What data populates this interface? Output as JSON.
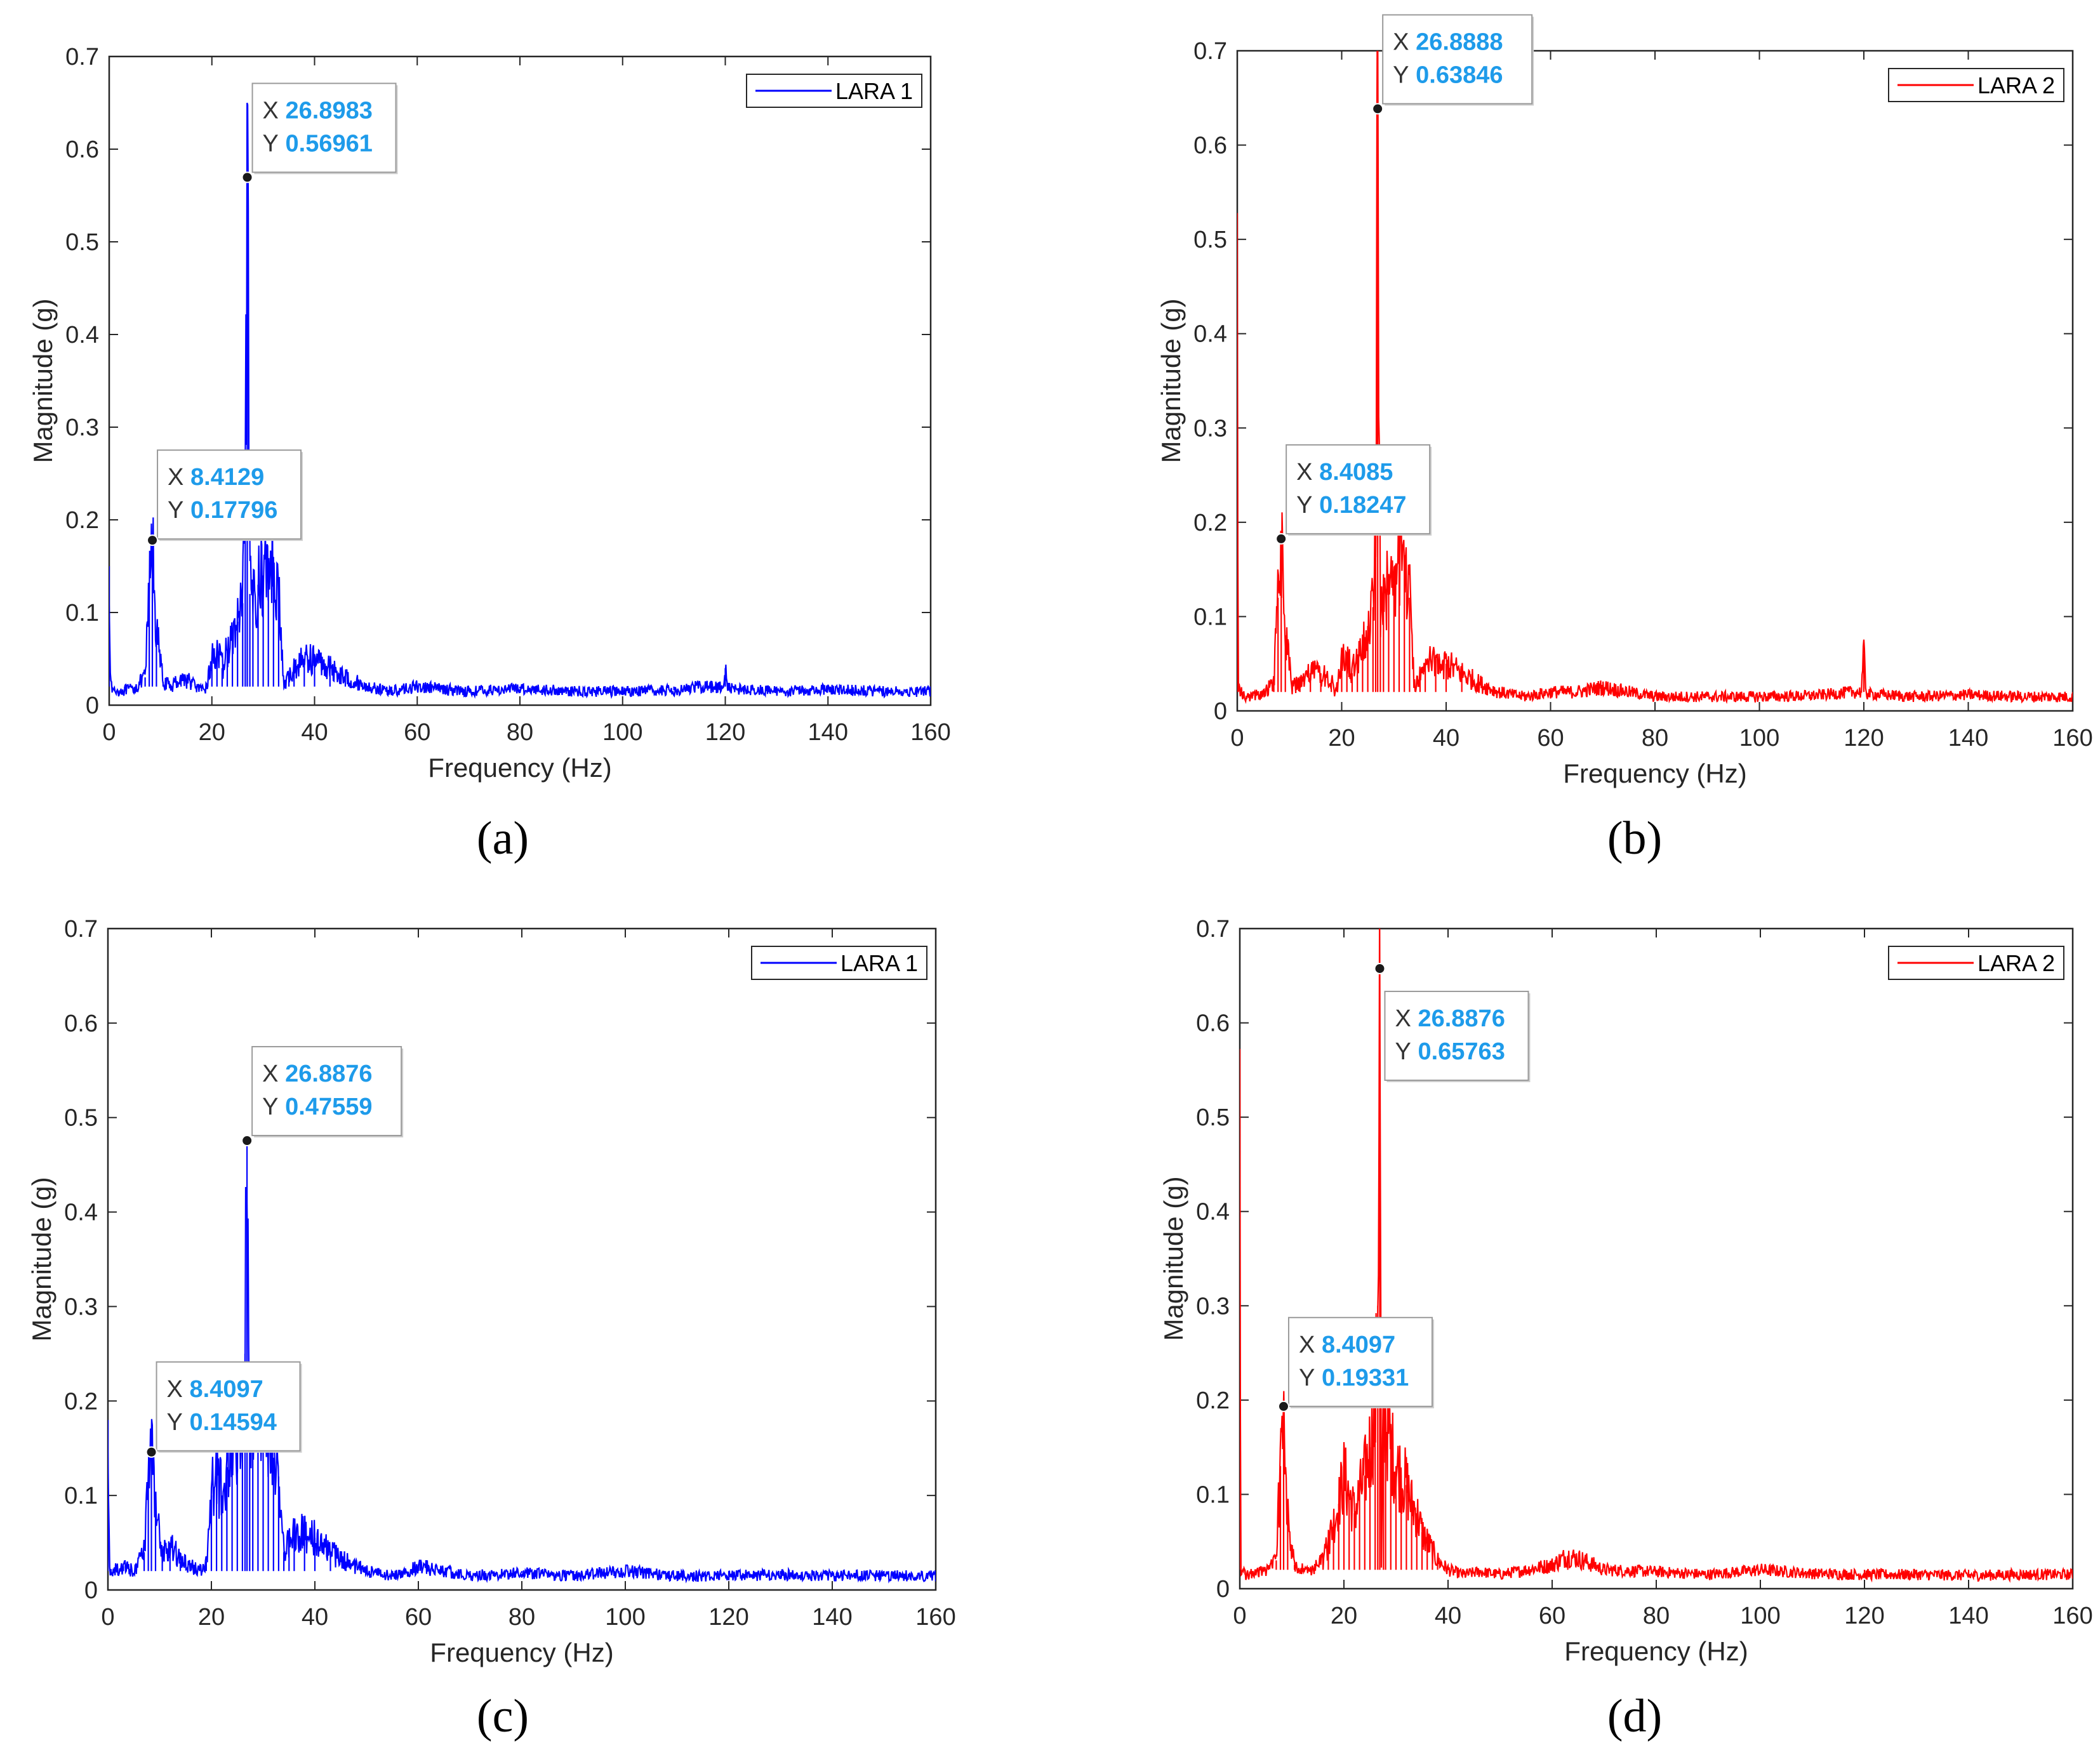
{
  "figure": {
    "panel_labels": [
      "(a)",
      "(b)",
      "(c)",
      "(d)"
    ]
  },
  "colors": {
    "blue": "#0000ff",
    "red": "#ff0000",
    "tip_value": "#1e9bea",
    "axis": "#262626"
  },
  "chart_data": [
    {
      "type": "line",
      "panel": "(a)",
      "title": "",
      "xlabel": "Frequency (Hz)",
      "ylabel": "Magnitude (g)",
      "xlim": [
        0,
        160
      ],
      "ylim": [
        0,
        0.7
      ],
      "xticks": [
        0,
        20,
        40,
        60,
        80,
        100,
        120,
        140,
        160
      ],
      "yticks": [
        0,
        0.1,
        0.2,
        0.3,
        0.4,
        0.5,
        0.6,
        0.7
      ],
      "xtick_labels": [
        "0",
        "20",
        "40",
        "60",
        "80",
        "100",
        "120",
        "140",
        "160"
      ],
      "ytick_labels": [
        "0",
        "0.1",
        "0.2",
        "0.3",
        "0.4",
        "0.5",
        "0.6",
        "0.7"
      ],
      "legend": {
        "label": "LARA 1",
        "position": "top-right"
      },
      "color": "#0000ff",
      "series": [
        {
          "name": "LARA 1",
          "x": [
            0,
            0.3,
            1,
            3,
            5,
            7,
            7.8,
            8.4129,
            9.2,
            10.5,
            12,
            14,
            16,
            18,
            19,
            20,
            21,
            22,
            23,
            24,
            25,
            26,
            26.5,
            26.8983,
            27.4,
            28,
            29,
            30,
            31,
            32,
            33,
            34,
            35,
            36,
            38,
            40,
            43,
            46,
            50,
            55,
            60,
            70,
            80,
            90,
            100,
            110,
            115,
            119.5,
            120,
            120.5,
            130,
            140,
            150,
            160
          ],
          "y": [
            0.15,
            0.02,
            0.015,
            0.016,
            0.018,
            0.03,
            0.12,
            0.17796,
            0.08,
            0.025,
            0.02,
            0.03,
            0.025,
            0.015,
            0.02,
            0.05,
            0.06,
            0.04,
            0.06,
            0.07,
            0.09,
            0.11,
            0.2,
            0.56961,
            0.12,
            0.12,
            0.13,
            0.14,
            0.155,
            0.16,
            0.12,
            0.02,
            0.03,
            0.04,
            0.05,
            0.05,
            0.04,
            0.03,
            0.02,
            0.015,
            0.02,
            0.015,
            0.018,
            0.015,
            0.015,
            0.016,
            0.02,
            0.02,
            0.04,
            0.018,
            0.015,
            0.017,
            0.015,
            0.015
          ]
        }
      ],
      "datatips": [
        {
          "x_label": "X",
          "x_value": "26.8983",
          "y_label": "Y",
          "y_value": "0.56961",
          "x": 26.8983,
          "y": 0.56961
        },
        {
          "x_label": "X",
          "x_value": "8.4129",
          "y_label": "Y",
          "y_value": "0.17796",
          "x": 8.4129,
          "y": 0.17796
        }
      ]
    },
    {
      "type": "line",
      "panel": "(b)",
      "title": "",
      "xlabel": "Frequency (Hz)",
      "ylabel": "Magnitude (g)",
      "xlim": [
        0,
        160
      ],
      "ylim": [
        0,
        0.7
      ],
      "xticks": [
        0,
        20,
        40,
        60,
        80,
        100,
        120,
        140,
        160
      ],
      "yticks": [
        0,
        0.1,
        0.2,
        0.3,
        0.4,
        0.5,
        0.6,
        0.7
      ],
      "xtick_labels": [
        "0",
        "20",
        "40",
        "60",
        "80",
        "100",
        "120",
        "140",
        "160"
      ],
      "ytick_labels": [
        "0",
        "0.1",
        "0.2",
        "0.3",
        "0.4",
        "0.5",
        "0.6",
        "0.7"
      ],
      "legend": {
        "label": "LARA 2",
        "position": "top-right"
      },
      "color": "#ff0000",
      "series": [
        {
          "name": "LARA 2",
          "x": [
            0,
            0.2,
            1,
            3,
            5,
            7,
            7.8,
            8.4085,
            9.2,
            10.5,
            12,
            14,
            16,
            18,
            19,
            20,
            21,
            22,
            23,
            24,
            25,
            26,
            26.5,
            26.8888,
            27.4,
            28,
            29,
            30,
            31,
            32,
            33,
            34,
            35,
            36,
            38,
            40,
            43,
            46,
            50,
            55,
            60,
            65,
            70,
            75,
            80,
            90,
            100,
            110,
            118,
            119.5,
            120,
            120.5,
            130,
            140,
            150,
            160
          ],
          "y": [
            0.47,
            0.03,
            0.015,
            0.016,
            0.018,
            0.03,
            0.12,
            0.18247,
            0.08,
            0.025,
            0.03,
            0.04,
            0.04,
            0.03,
            0.02,
            0.05,
            0.06,
            0.04,
            0.06,
            0.07,
            0.09,
            0.11,
            0.2,
            0.63846,
            0.12,
            0.12,
            0.13,
            0.14,
            0.155,
            0.165,
            0.12,
            0.02,
            0.04,
            0.05,
            0.055,
            0.05,
            0.04,
            0.03,
            0.02,
            0.015,
            0.02,
            0.02,
            0.025,
            0.02,
            0.015,
            0.015,
            0.015,
            0.016,
            0.02,
            0.02,
            0.06,
            0.018,
            0.015,
            0.017,
            0.015,
            0.015
          ]
        }
      ],
      "datatips": [
        {
          "x_label": "X",
          "x_value": "26.8888",
          "y_label": "Y",
          "y_value": "0.63846",
          "x": 26.8888,
          "y": 0.63846
        },
        {
          "x_label": "X",
          "x_value": "8.4085",
          "y_label": "Y",
          "y_value": "0.18247",
          "x": 8.4085,
          "y": 0.18247
        }
      ]
    },
    {
      "type": "line",
      "panel": "(c)",
      "title": "",
      "xlabel": "Frequency (Hz)",
      "ylabel": "Magnitude (g)",
      "xlim": [
        0,
        160
      ],
      "ylim": [
        0,
        0.7
      ],
      "xticks": [
        0,
        20,
        40,
        60,
        80,
        100,
        120,
        140,
        160
      ],
      "yticks": [
        0,
        0.1,
        0.2,
        0.3,
        0.4,
        0.5,
        0.6,
        0.7
      ],
      "xtick_labels": [
        "0",
        "20",
        "40",
        "60",
        "80",
        "100",
        "120",
        "140",
        "160"
      ],
      "ytick_labels": [
        "0",
        "0.1",
        "0.2",
        "0.3",
        "0.4",
        "0.5",
        "0.6",
        "0.7"
      ],
      "legend": {
        "label": "LARA 1",
        "position": "top-right"
      },
      "color": "#0000ff",
      "series": [
        {
          "name": "LARA 1",
          "x": [
            0,
            0.3,
            1,
            3,
            5,
            7,
            7.8,
            8.4097,
            9.2,
            10.5,
            12,
            14,
            16,
            18,
            19,
            20,
            21,
            22,
            23,
            24,
            25,
            26,
            26.5,
            26.8876,
            27.4,
            28,
            29,
            30,
            31,
            32,
            33,
            34,
            35,
            36,
            38,
            40,
            43,
            46,
            50,
            55,
            60,
            70,
            80,
            90,
            100,
            110,
            120,
            130,
            140,
            150,
            160
          ],
          "y": [
            0.18,
            0.02,
            0.02,
            0.025,
            0.02,
            0.04,
            0.12,
            0.14594,
            0.08,
            0.04,
            0.05,
            0.03,
            0.025,
            0.02,
            0.03,
            0.1,
            0.12,
            0.1,
            0.13,
            0.15,
            0.17,
            0.18,
            0.25,
            0.47559,
            0.19,
            0.18,
            0.17,
            0.16,
            0.15,
            0.14,
            0.12,
            0.04,
            0.05,
            0.06,
            0.06,
            0.055,
            0.04,
            0.03,
            0.02,
            0.015,
            0.025,
            0.015,
            0.018,
            0.015,
            0.02,
            0.015,
            0.015,
            0.016,
            0.015,
            0.015,
            0.015
          ]
        }
      ],
      "datatips": [
        {
          "x_label": "X",
          "x_value": "26.8876",
          "y_label": "Y",
          "y_value": "0.47559",
          "x": 26.8876,
          "y": 0.47559
        },
        {
          "x_label": "X",
          "x_value": "8.4097",
          "y_label": "Y",
          "y_value": "0.14594",
          "x": 8.4097,
          "y": 0.14594
        }
      ]
    },
    {
      "type": "line",
      "panel": "(d)",
      "title": "",
      "xlabel": "Frequency (Hz)",
      "ylabel": "Magnitude (g)",
      "xlim": [
        0,
        160
      ],
      "ylim": [
        0,
        0.7
      ],
      "xticks": [
        0,
        20,
        40,
        60,
        80,
        100,
        120,
        140,
        160
      ],
      "yticks": [
        0,
        0.1,
        0.2,
        0.3,
        0.4,
        0.5,
        0.6,
        0.7
      ],
      "xtick_labels": [
        "0",
        "20",
        "40",
        "60",
        "80",
        "100",
        "120",
        "140",
        "160"
      ],
      "ytick_labels": [
        "0",
        "0.1",
        "0.2",
        "0.3",
        "0.4",
        "0.5",
        "0.6",
        "0.7"
      ],
      "legend": {
        "label": "LARA 2",
        "position": "top-right"
      },
      "color": "#ff0000",
      "series": [
        {
          "name": "LARA 2",
          "x": [
            0,
            0.2,
            1,
            3,
            5,
            7,
            7.8,
            8.4097,
            9.2,
            10.5,
            12,
            14,
            16,
            17,
            18,
            19,
            20,
            21,
            22,
            23,
            24,
            25,
            26,
            26.5,
            26.8876,
            27.2,
            27.6,
            28,
            29,
            30,
            31,
            32,
            33,
            34,
            35,
            36,
            37,
            38,
            40,
            43,
            46,
            50,
            55,
            60,
            63,
            66,
            70,
            80,
            90,
            100,
            110,
            120,
            130,
            140,
            150,
            160
          ],
          "y": [
            0.47,
            0.02,
            0.015,
            0.016,
            0.02,
            0.03,
            0.13,
            0.19331,
            0.08,
            0.025,
            0.02,
            0.02,
            0.03,
            0.05,
            0.07,
            0.09,
            0.12,
            0.1,
            0.08,
            0.1,
            0.12,
            0.15,
            0.18,
            0.3,
            0.65763,
            0.02,
            0.2,
            0.18,
            0.15,
            0.13,
            0.12,
            0.11,
            0.09,
            0.08,
            0.06,
            0.05,
            0.04,
            0.03,
            0.02,
            0.015,
            0.018,
            0.015,
            0.02,
            0.025,
            0.035,
            0.03,
            0.02,
            0.018,
            0.015,
            0.02,
            0.016,
            0.015,
            0.015,
            0.014,
            0.015,
            0.015
          ]
        }
      ],
      "datatips": [
        {
          "x_label": "X",
          "x_value": "26.8876",
          "y_label": "Y",
          "y_value": "0.65763",
          "x": 26.8876,
          "y": 0.65763
        },
        {
          "x_label": "X",
          "x_value": "8.4097",
          "y_label": "Y",
          "y_value": "0.19331",
          "x": 8.4097,
          "y": 0.19331
        }
      ]
    }
  ]
}
